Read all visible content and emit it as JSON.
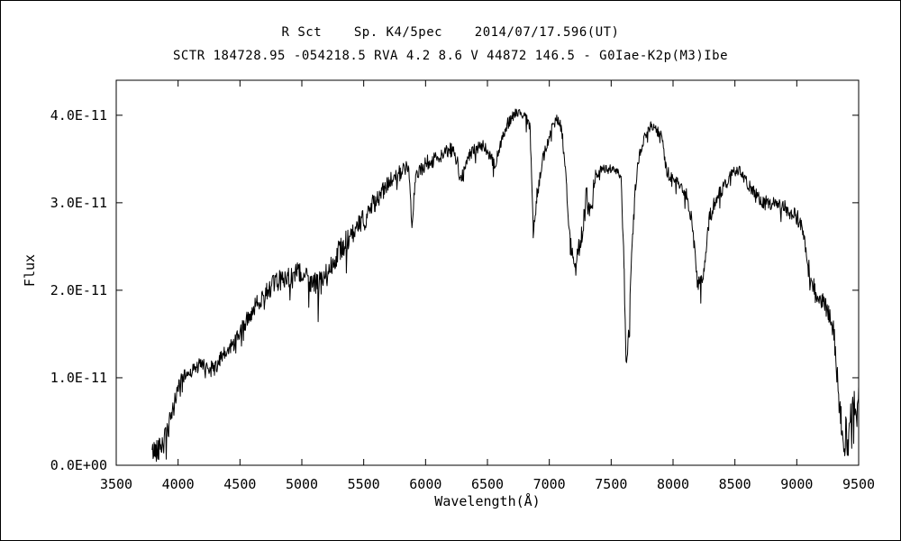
{
  "chart_data": {
    "type": "line",
    "title": "R Sct    Sp. K4/5pec    2014/07/17.596(UT)",
    "subtitle": "SCTR 184728.95 -054218.5 RVA 4.2 8.6 V 44872 146.5 - G0Iae-K2p(M3)Ibe",
    "xlabel": "Wavelength(Å)",
    "ylabel": "Flux",
    "xlim": [
      3500,
      9500
    ],
    "ylim": [
      0,
      4.4
    ],
    "y_scale_note": "flux values are in units of 1e-11 matching the axis tick labels",
    "grid": false,
    "legend": "none",
    "line_color": "#000000",
    "background_color": "#ffffff",
    "x_ticks": [
      {
        "value": 3500,
        "label": "3500"
      },
      {
        "value": 4000,
        "label": "4000"
      },
      {
        "value": 4500,
        "label": "4500"
      },
      {
        "value": 5000,
        "label": "5000"
      },
      {
        "value": 5500,
        "label": "5500"
      },
      {
        "value": 6000,
        "label": "6000"
      },
      {
        "value": 6500,
        "label": "6500"
      },
      {
        "value": 7000,
        "label": "7000"
      },
      {
        "value": 7500,
        "label": "7500"
      },
      {
        "value": 8000,
        "label": "8000"
      },
      {
        "value": 8500,
        "label": "8500"
      },
      {
        "value": 9000,
        "label": "9000"
      },
      {
        "value": 9500,
        "label": "9500"
      }
    ],
    "y_ticks": [
      {
        "value": 0,
        "label": "0.0E+00"
      },
      {
        "value": 1,
        "label": "1.0E-11"
      },
      {
        "value": 2,
        "label": "2.0E-11"
      },
      {
        "value": 3,
        "label": "3.0E-11"
      },
      {
        "value": 4,
        "label": "4.0E-11"
      }
    ],
    "seed": 42,
    "sample_step": 4,
    "spike_prob": 0.05,
    "spike_depth": 2.5,
    "anchors": [
      [
        3790,
        0.15,
        0.12
      ],
      [
        3820,
        0.18,
        0.14
      ],
      [
        3860,
        0.22,
        0.15
      ],
      [
        3900,
        0.3,
        0.15
      ],
      [
        3950,
        0.55,
        0.14
      ],
      [
        3990,
        0.85,
        0.1
      ],
      [
        4030,
        1.0,
        0.07
      ],
      [
        4080,
        1.05,
        0.07
      ],
      [
        4130,
        1.1,
        0.08
      ],
      [
        4180,
        1.15,
        0.08
      ],
      [
        4230,
        1.12,
        0.09
      ],
      [
        4290,
        1.1,
        0.1
      ],
      [
        4340,
        1.2,
        0.1
      ],
      [
        4400,
        1.3,
        0.1
      ],
      [
        4450,
        1.4,
        0.1
      ],
      [
        4500,
        1.5,
        0.1
      ],
      [
        4570,
        1.7,
        0.1
      ],
      [
        4640,
        1.85,
        0.1
      ],
      [
        4720,
        2.0,
        0.11
      ],
      [
        4800,
        2.1,
        0.12
      ],
      [
        4880,
        2.15,
        0.12
      ],
      [
        4960,
        2.2,
        0.12
      ],
      [
        5040,
        2.15,
        0.13
      ],
      [
        5120,
        2.05,
        0.15
      ],
      [
        5180,
        2.1,
        0.15
      ],
      [
        5240,
        2.3,
        0.13
      ],
      [
        5320,
        2.5,
        0.13
      ],
      [
        5400,
        2.6,
        0.14
      ],
      [
        5480,
        2.75,
        0.15
      ],
      [
        5560,
        2.95,
        0.12
      ],
      [
        5640,
        3.1,
        0.11
      ],
      [
        5720,
        3.25,
        0.1
      ],
      [
        5800,
        3.35,
        0.09
      ],
      [
        5860,
        3.42,
        0.07
      ],
      [
        5890,
        2.75,
        0.06
      ],
      [
        5920,
        3.3,
        0.08
      ],
      [
        6000,
        3.45,
        0.09
      ],
      [
        6080,
        3.5,
        0.09
      ],
      [
        6160,
        3.58,
        0.08
      ],
      [
        6210,
        3.6,
        0.09
      ],
      [
        6250,
        3.5,
        0.09
      ],
      [
        6290,
        3.25,
        0.08
      ],
      [
        6330,
        3.5,
        0.08
      ],
      [
        6400,
        3.6,
        0.08
      ],
      [
        6460,
        3.65,
        0.07
      ],
      [
        6520,
        3.55,
        0.07
      ],
      [
        6560,
        3.42,
        0.06
      ],
      [
        6610,
        3.7,
        0.07
      ],
      [
        6660,
        3.9,
        0.07
      ],
      [
        6710,
        4.0,
        0.06
      ],
      [
        6760,
        4.05,
        0.05
      ],
      [
        6810,
        4.0,
        0.06
      ],
      [
        6845,
        3.85,
        0.05
      ],
      [
        6870,
        2.65,
        0.1
      ],
      [
        6900,
        3.1,
        0.1
      ],
      [
        6950,
        3.5,
        0.08
      ],
      [
        7000,
        3.75,
        0.07
      ],
      [
        7040,
        3.95,
        0.06
      ],
      [
        7080,
        3.95,
        0.06
      ],
      [
        7110,
        3.7,
        0.08
      ],
      [
        7140,
        3.2,
        0.1
      ],
      [
        7170,
        2.5,
        0.12
      ],
      [
        7210,
        2.35,
        0.13
      ],
      [
        7260,
        2.6,
        0.15
      ],
      [
        7300,
        3.05,
        0.15
      ],
      [
        7330,
        2.9,
        0.13
      ],
      [
        7370,
        3.3,
        0.08
      ],
      [
        7420,
        3.38,
        0.05
      ],
      [
        7480,
        3.4,
        0.04
      ],
      [
        7540,
        3.37,
        0.04
      ],
      [
        7580,
        3.3,
        0.04
      ],
      [
        7605,
        2.2,
        0.1
      ],
      [
        7620,
        1.15,
        0.06
      ],
      [
        7645,
        1.55,
        0.1
      ],
      [
        7665,
        2.5,
        0.1
      ],
      [
        7690,
        3.1,
        0.07
      ],
      [
        7720,
        3.5,
        0.06
      ],
      [
        7770,
        3.75,
        0.06
      ],
      [
        7820,
        3.87,
        0.06
      ],
      [
        7870,
        3.82,
        0.06
      ],
      [
        7910,
        3.75,
        0.06
      ],
      [
        7950,
        3.35,
        0.08
      ],
      [
        8000,
        3.27,
        0.06
      ],
      [
        8060,
        3.2,
        0.06
      ],
      [
        8110,
        3.1,
        0.08
      ],
      [
        8160,
        2.7,
        0.1
      ],
      [
        8200,
        2.05,
        0.09
      ],
      [
        8240,
        2.15,
        0.1
      ],
      [
        8290,
        2.8,
        0.1
      ],
      [
        8350,
        3.05,
        0.08
      ],
      [
        8420,
        3.2,
        0.08
      ],
      [
        8480,
        3.35,
        0.07
      ],
      [
        8540,
        3.38,
        0.06
      ],
      [
        8600,
        3.22,
        0.07
      ],
      [
        8660,
        3.1,
        0.08
      ],
      [
        8720,
        3.02,
        0.08
      ],
      [
        8780,
        3.0,
        0.08
      ],
      [
        8840,
        2.97,
        0.08
      ],
      [
        8900,
        2.95,
        0.08
      ],
      [
        8960,
        2.9,
        0.09
      ],
      [
        9020,
        2.8,
        0.1
      ],
      [
        9070,
        2.5,
        0.13
      ],
      [
        9110,
        2.1,
        0.14
      ],
      [
        9160,
        1.95,
        0.12
      ],
      [
        9210,
        1.88,
        0.1
      ],
      [
        9260,
        1.72,
        0.1
      ],
      [
        9300,
        1.5,
        0.15
      ],
      [
        9330,
        0.9,
        0.2
      ],
      [
        9360,
        0.4,
        0.25
      ],
      [
        9400,
        0.3,
        0.25
      ],
      [
        9440,
        0.45,
        0.3
      ],
      [
        9470,
        0.55,
        0.32
      ],
      [
        9500,
        0.9,
        0.3
      ]
    ]
  }
}
